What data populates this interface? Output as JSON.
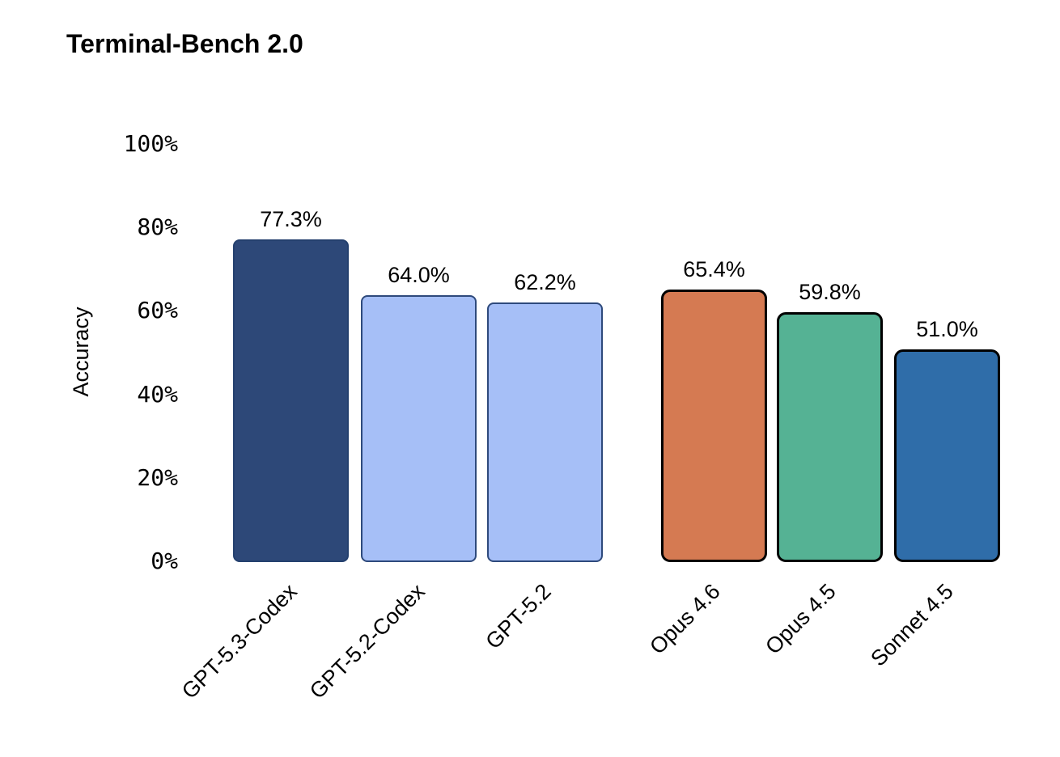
{
  "title": "Terminal-Bench 2.0",
  "chart_data": {
    "type": "bar",
    "title": "Terminal-Bench 2.0",
    "xlabel": "",
    "ylabel": "Accuracy",
    "ylim": [
      0,
      100
    ],
    "yticks": [
      "0%",
      "20%",
      "40%",
      "60%",
      "80%",
      "100%"
    ],
    "grid": false,
    "legend": false,
    "categories": [
      "GPT-5.3-Codex",
      "GPT-5.2-Codex",
      "GPT-5.2",
      "Opus 4.6",
      "Opus 4.5",
      "Sonnet 4.5"
    ],
    "values": [
      77.3,
      64.0,
      62.2,
      65.4,
      59.8,
      51.0
    ],
    "bars": [
      {
        "label": "GPT-5.3-Codex",
        "value": 77.3,
        "value_label": "77.3%",
        "fill": "#2d4878",
        "stroke": "#24406e",
        "group": "openai"
      },
      {
        "label": "GPT-5.2-Codex",
        "value": 64.0,
        "value_label": "64.0%",
        "fill": "#a6bff7",
        "stroke": "#2e4a7c",
        "group": "openai"
      },
      {
        "label": "GPT-5.2",
        "value": 62.2,
        "value_label": "62.2%",
        "fill": "#a6bff7",
        "stroke": "#2e4a7c",
        "group": "openai"
      },
      {
        "label": "Opus 4.6",
        "value": 65.4,
        "value_label": "65.4%",
        "fill": "#d57a52",
        "stroke": "#000000",
        "group": "anthropic"
      },
      {
        "label": "Opus 4.5",
        "value": 59.8,
        "value_label": "59.8%",
        "fill": "#55b294",
        "stroke": "#000000",
        "group": "anthropic"
      },
      {
        "label": "Sonnet 4.5",
        "value": 51.0,
        "value_label": "51.0%",
        "fill": "#2f6da9",
        "stroke": "#000000",
        "group": "anthropic"
      }
    ],
    "colors": {
      "openai_highlight": "#2d4878",
      "openai_light": "#a6bff7",
      "anthropic_orange": "#d57a52",
      "anthropic_green": "#55b294",
      "anthropic_blue": "#2f6da9"
    }
  }
}
